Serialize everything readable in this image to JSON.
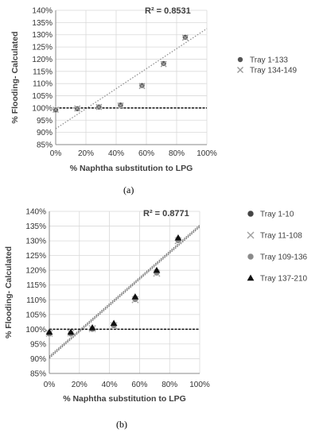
{
  "chart_data": [
    {
      "type": "scatter",
      "panel": "a",
      "caption": "(a)",
      "xlabel": "% Naphtha substitution to LPG",
      "ylabel": "% Flooding- Calculated",
      "xlim": [
        0,
        100
      ],
      "ylim": [
        85,
        140
      ],
      "x_ticks": [
        "0%",
        "20%",
        "40%",
        "60%",
        "80%",
        "100%"
      ],
      "y_ticks": [
        "85%",
        "90%",
        "95%",
        "100%",
        "105%",
        "110%",
        "115%",
        "120%",
        "125%",
        "130%",
        "135%",
        "140%"
      ],
      "x_tick_values": [
        0,
        20,
        40,
        60,
        80,
        100
      ],
      "y_tick_values": [
        85,
        90,
        95,
        100,
        105,
        110,
        115,
        120,
        125,
        130,
        135,
        140
      ],
      "r_squared": "R² = 0.8531",
      "grid": true,
      "legend_position": "right",
      "series": [
        {
          "name": "Tray 1-133",
          "marker": "circle",
          "color": "#555555",
          "x": [
            0,
            14.3,
            28.6,
            42.9,
            57.1,
            71.4,
            85.7
          ],
          "y": [
            99.2,
            99.7,
            100.4,
            101.2,
            109.2,
            118.2,
            129.0
          ]
        },
        {
          "name": "Tray 134-149",
          "marker": "x",
          "color": "#9a9a9a",
          "x": [
            0,
            14.3,
            28.6,
            42.9,
            57.1,
            71.4,
            85.7
          ],
          "y": [
            99.3,
            99.8,
            100.4,
            101.0,
            109.0,
            118.0,
            128.8
          ]
        }
      ],
      "reference_line_y": 100,
      "trendline": {
        "x": [
          0,
          100
        ],
        "y": [
          91.5,
          132.5
        ]
      }
    },
    {
      "type": "scatter",
      "panel": "b",
      "caption": "(b)",
      "xlabel": "% Naphtha substitution to LPG",
      "ylabel": "% Flooding- Calculated",
      "xlim": [
        0,
        100
      ],
      "ylim": [
        85,
        140
      ],
      "x_ticks": [
        "0%",
        "20%",
        "40%",
        "60%",
        "80%",
        "100%"
      ],
      "y_ticks": [
        "85%",
        "90%",
        "95%",
        "100%",
        "105%",
        "110%",
        "115%",
        "120%",
        "125%",
        "130%",
        "135%",
        "140%"
      ],
      "x_tick_values": [
        0,
        20,
        40,
        60,
        80,
        100
      ],
      "y_tick_values": [
        85,
        90,
        95,
        100,
        105,
        110,
        115,
        120,
        125,
        130,
        135,
        140
      ],
      "r_squared": "R² = 0.8771",
      "grid": true,
      "legend_position": "right",
      "series": [
        {
          "name": "Tray 1-10",
          "marker": "circle",
          "color": "#444444",
          "x": [
            0,
            14.3,
            28.6,
            42.9,
            57.1,
            71.4,
            85.7
          ],
          "y": [
            98.8,
            98.6,
            100.2,
            101.5,
            110.5,
            119.5,
            130.5
          ]
        },
        {
          "name": "Tray 11-108",
          "marker": "x",
          "color": "#a0a0a0",
          "x": [
            0,
            14.3,
            28.6,
            42.9,
            57.1,
            71.4,
            85.7
          ],
          "y": [
            98.6,
            98.7,
            100.2,
            101.2,
            110.0,
            119.0,
            130.0
          ]
        },
        {
          "name": "Tray 109-136",
          "marker": "circle",
          "color": "#8a8a8a",
          "x": [
            0,
            14.3,
            28.6,
            42.9,
            57.1,
            71.4,
            85.7
          ],
          "y": [
            98.5,
            98.5,
            100.1,
            101.3,
            110.2,
            119.2,
            130.2
          ]
        },
        {
          "name": "Tray 137-210",
          "marker": "triangle",
          "color": "#111111",
          "x": [
            0,
            14.3,
            28.6,
            42.9,
            57.1,
            71.4,
            85.7
          ],
          "y": [
            99.0,
            99.0,
            100.5,
            102.0,
            111.0,
            120.0,
            131.0
          ]
        }
      ],
      "reference_line_y": 100,
      "trendline": {
        "x": [
          0,
          100
        ],
        "y": [
          90.5,
          135.0
        ]
      }
    }
  ]
}
